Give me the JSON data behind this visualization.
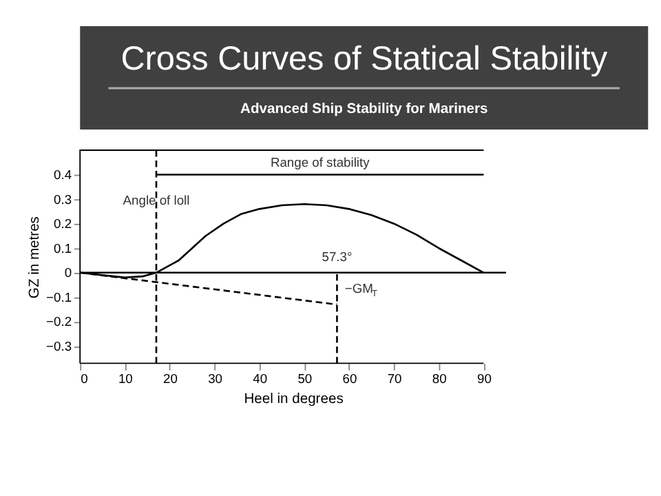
{
  "chart_data": {
    "type": "line",
    "title": "Cross Curves of Statical Stability",
    "subtitle": "Advanced Ship Stability for Mariners",
    "xlabel": "Heel in degrees",
    "ylabel": "GZ in metres",
    "series": [
      {
        "color": "#000000",
        "line_style": "solid",
        "x": [
          0,
          5,
          10,
          14,
          17,
          20,
          22,
          25,
          28,
          32,
          36,
          40,
          45,
          50,
          55,
          60,
          65,
          70,
          75,
          80,
          85,
          90
        ],
        "values": [
          0,
          -0.01,
          -0.02,
          -0.015,
          0,
          0.03,
          0.05,
          0.1,
          0.15,
          0.2,
          0.24,
          0.26,
          0.275,
          0.28,
          0.275,
          0.26,
          0.235,
          0.2,
          0.155,
          0.1,
          0.05,
          0
        ]
      },
      {
        "name": "Range of stability",
        "color": "#000000",
        "line_style": "solid",
        "x": [
          17,
          90
        ],
        "values": [
          0.4,
          0.4
        ]
      },
      {
        "color": "#000000",
        "line_style": "dashed",
        "x": [
          0,
          57.3
        ],
        "values": [
          0,
          -0.13
        ]
      }
    ],
    "xlim": [
      0,
      95
    ],
    "ylim": [
      -0.37,
      0.5
    ],
    "xticks": [
      0,
      10,
      20,
      30,
      40,
      50,
      60,
      70,
      80,
      90
    ],
    "yticks": [
      -0.3,
      -0.2,
      -0.1,
      0,
      0.1,
      0.2,
      0.3,
      0.4
    ],
    "ref_lines": [
      {
        "axis": "y",
        "value": 0,
        "line_style": "solid"
      },
      {
        "axis": "x",
        "value": 17,
        "label": "Angle of loll",
        "line_style": "dashed"
      },
      {
        "axis": "x",
        "value": 57.3,
        "label": "57.3°",
        "line_style": "dashed"
      }
    ],
    "annotations": [
      "−GM$_{T}$"
    ],
    "grid": false,
    "marker": "none"
  }
}
